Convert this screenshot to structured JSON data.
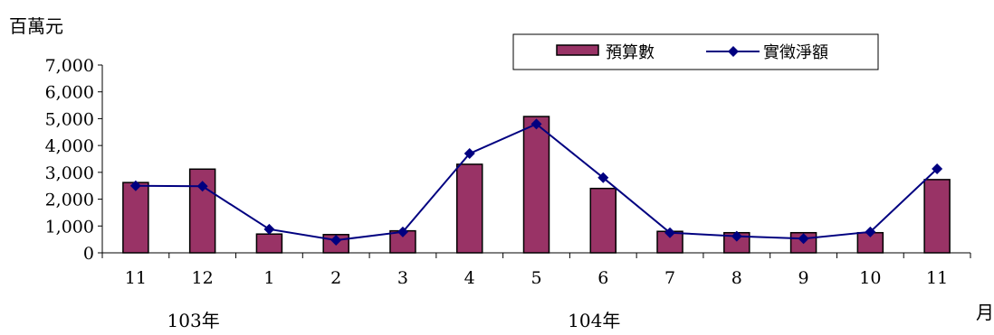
{
  "chart_data": {
    "type": "bar",
    "ylabel": "百萬元",
    "xlabel": "月",
    "categories": [
      "11",
      "12",
      "1",
      "2",
      "3",
      "4",
      "5",
      "6",
      "7",
      "8",
      "9",
      "10",
      "11"
    ],
    "year_labels": [
      {
        "text": "103年",
        "at_category": 1
      },
      {
        "text": "104年",
        "at_category": 7
      }
    ],
    "ylim": [
      0,
      7000
    ],
    "yticks": [
      "0",
      "1,000",
      "2,000",
      "3,000",
      "4,000",
      "5,000",
      "6,000",
      "7,000"
    ],
    "ytick_values": [
      0,
      1000,
      2000,
      3000,
      4000,
      5000,
      6000,
      7000
    ],
    "grid": false,
    "legend_position": "top-right",
    "series": [
      {
        "name": "預算數",
        "kind": "bar",
        "color": "#993366",
        "values": [
          2620,
          3120,
          700,
          680,
          820,
          3300,
          5080,
          2400,
          800,
          750,
          750,
          750,
          2730
        ]
      },
      {
        "name": "實徵淨額",
        "kind": "line",
        "color": "#000080",
        "values": [
          2500,
          2480,
          880,
          470,
          780,
          3700,
          4800,
          2800,
          750,
          620,
          530,
          780,
          3130
        ]
      }
    ]
  }
}
